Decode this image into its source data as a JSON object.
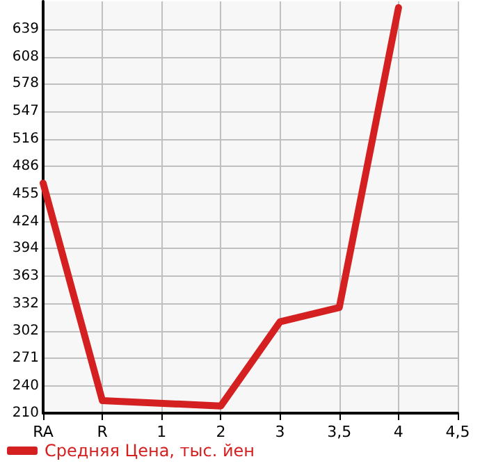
{
  "chart_data": {
    "type": "line",
    "categories": [
      "RA",
      "R",
      "1",
      "2",
      "3",
      "3,5",
      "4",
      "4,5"
    ],
    "series": [
      {
        "name": "Средняя Цена, тыс. йен",
        "color": "#d42020",
        "values": [
          467,
          224,
          null,
          218,
          312,
          328,
          663,
          null
        ]
      }
    ],
    "ylim": [
      210,
      670
    ],
    "yticks": [
      210,
      240,
      271,
      302,
      332,
      363,
      394,
      424,
      455,
      486,
      516,
      547,
      578,
      608,
      639
    ],
    "grid": true,
    "legend": "bottom left",
    "marker": "none",
    "line_style": "solid"
  }
}
